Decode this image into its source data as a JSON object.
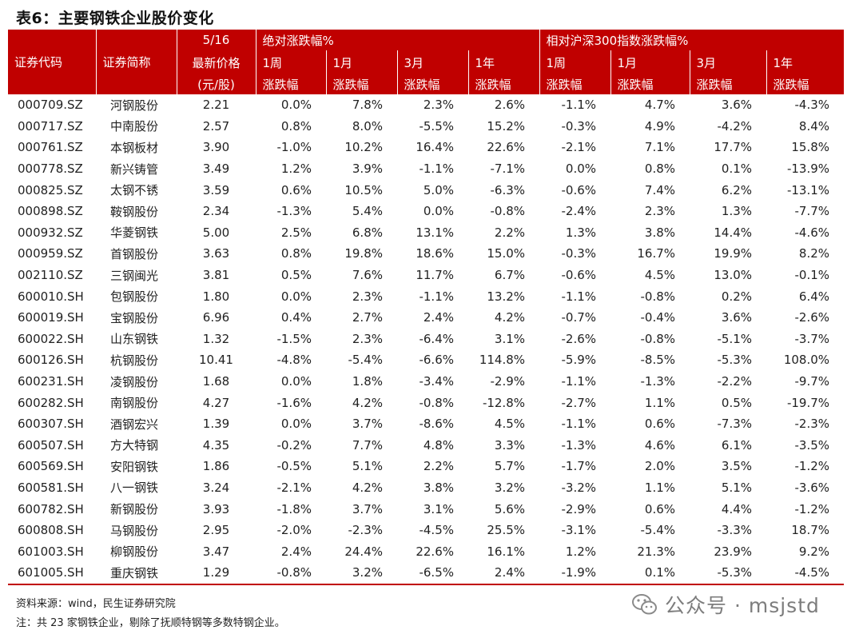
{
  "title": "表6：主要钢铁企业股价变化",
  "header": {
    "date": "5/16",
    "group_abs": "绝对涨跌幅%",
    "group_rel": "相对沪深300指数涨跌幅%",
    "col_code": "证券代码",
    "col_name": "证券简称",
    "col_price_line1": "最新价格",
    "col_price_line2": "(元/股)",
    "periods": [
      "1周",
      "1月",
      "3月",
      "1年",
      "1周",
      "1月",
      "3月",
      "1年"
    ],
    "sub_label": "涨跌幅"
  },
  "rows": [
    [
      "000709.SZ",
      "河钢股份",
      "2.21",
      "0.0%",
      "7.8%",
      "2.3%",
      "2.6%",
      "-1.1%",
      "4.7%",
      "3.6%",
      "-4.3%"
    ],
    [
      "000717.SZ",
      "中南股份",
      "2.57",
      "0.8%",
      "8.0%",
      "-5.5%",
      "15.2%",
      "-0.3%",
      "4.9%",
      "-4.2%",
      "8.4%"
    ],
    [
      "000761.SZ",
      "本钢板材",
      "3.90",
      "-1.0%",
      "10.2%",
      "16.4%",
      "22.6%",
      "-2.1%",
      "7.1%",
      "17.7%",
      "15.8%"
    ],
    [
      "000778.SZ",
      "新兴铸管",
      "3.49",
      "1.2%",
      "3.9%",
      "-1.1%",
      "-7.1%",
      "0.0%",
      "0.8%",
      "0.1%",
      "-13.9%"
    ],
    [
      "000825.SZ",
      "太钢不锈",
      "3.59",
      "0.6%",
      "10.5%",
      "5.0%",
      "-6.3%",
      "-0.6%",
      "7.4%",
      "6.2%",
      "-13.1%"
    ],
    [
      "000898.SZ",
      "鞍钢股份",
      "2.34",
      "-1.3%",
      "5.4%",
      "0.0%",
      "-0.8%",
      "-2.4%",
      "2.3%",
      "1.3%",
      "-7.7%"
    ],
    [
      "000932.SZ",
      "华菱钢铁",
      "5.00",
      "2.5%",
      "6.8%",
      "13.1%",
      "2.2%",
      "1.3%",
      "3.8%",
      "14.4%",
      "-4.6%"
    ],
    [
      "000959.SZ",
      "首钢股份",
      "3.63",
      "0.8%",
      "19.8%",
      "18.6%",
      "15.0%",
      "-0.3%",
      "16.7%",
      "19.9%",
      "8.2%"
    ],
    [
      "002110.SZ",
      "三钢闽光",
      "3.81",
      "0.5%",
      "7.6%",
      "11.7%",
      "6.7%",
      "-0.6%",
      "4.5%",
      "13.0%",
      "-0.1%"
    ],
    [
      "600010.SH",
      "包钢股份",
      "1.80",
      "0.0%",
      "2.3%",
      "-1.1%",
      "13.2%",
      "-1.1%",
      "-0.8%",
      "0.2%",
      "6.4%"
    ],
    [
      "600019.SH",
      "宝钢股份",
      "6.96",
      "0.4%",
      "2.7%",
      "2.4%",
      "4.2%",
      "-0.7%",
      "-0.4%",
      "3.6%",
      "-2.6%"
    ],
    [
      "600022.SH",
      "山东钢铁",
      "1.32",
      "-1.5%",
      "2.3%",
      "-6.4%",
      "3.1%",
      "-2.6%",
      "-0.8%",
      "-5.1%",
      "-3.7%"
    ],
    [
      "600126.SH",
      "杭钢股份",
      "10.41",
      "-4.8%",
      "-5.4%",
      "-6.6%",
      "114.8%",
      "-5.9%",
      "-8.5%",
      "-5.3%",
      "108.0%"
    ],
    [
      "600231.SH",
      "凌钢股份",
      "1.68",
      "0.0%",
      "1.8%",
      "-3.4%",
      "-2.9%",
      "-1.1%",
      "-1.3%",
      "-2.2%",
      "-9.7%"
    ],
    [
      "600282.SH",
      "南钢股份",
      "4.27",
      "-1.6%",
      "4.2%",
      "-0.8%",
      "-12.8%",
      "-2.7%",
      "1.1%",
      "0.5%",
      "-19.7%"
    ],
    [
      "600307.SH",
      "酒钢宏兴",
      "1.39",
      "0.0%",
      "3.7%",
      "-8.6%",
      "4.5%",
      "-1.1%",
      "0.6%",
      "-7.3%",
      "-2.3%"
    ],
    [
      "600507.SH",
      "方大特钢",
      "4.35",
      "-0.2%",
      "7.7%",
      "4.8%",
      "3.3%",
      "-1.3%",
      "4.6%",
      "6.1%",
      "-3.5%"
    ],
    [
      "600569.SH",
      "安阳钢铁",
      "1.86",
      "-0.5%",
      "5.1%",
      "2.2%",
      "5.7%",
      "-1.7%",
      "2.0%",
      "3.5%",
      "-1.2%"
    ],
    [
      "600581.SH",
      "八一钢铁",
      "3.24",
      "-2.1%",
      "4.2%",
      "3.8%",
      "3.2%",
      "-3.2%",
      "1.1%",
      "5.1%",
      "-3.6%"
    ],
    [
      "600782.SH",
      "新钢股份",
      "3.93",
      "-1.8%",
      "3.7%",
      "3.1%",
      "5.6%",
      "-2.9%",
      "0.6%",
      "4.4%",
      "-1.2%"
    ],
    [
      "600808.SH",
      "马钢股份",
      "2.95",
      "-2.0%",
      "-2.3%",
      "-4.5%",
      "25.5%",
      "-3.1%",
      "-5.4%",
      "-3.3%",
      "18.7%"
    ],
    [
      "601003.SH",
      "柳钢股份",
      "3.47",
      "2.4%",
      "24.4%",
      "22.6%",
      "16.1%",
      "1.2%",
      "21.3%",
      "23.9%",
      "9.2%"
    ],
    [
      "601005.SH",
      "重庆钢铁",
      "1.29",
      "-0.8%",
      "3.2%",
      "-6.5%",
      "2.4%",
      "-1.9%",
      "0.1%",
      "-5.3%",
      "-4.5%"
    ]
  ],
  "footer": {
    "source": "资料来源：wind，民生证券研究院",
    "note": "注：共 23 家钢铁企业，剔除了抚顺特钢等多数特钢企业。"
  },
  "watermark": {
    "icon": "wechat-icon",
    "text": "公众号 · msjstd"
  },
  "colors": {
    "header_bg": "#c00000",
    "header_text": "#ffffff"
  }
}
